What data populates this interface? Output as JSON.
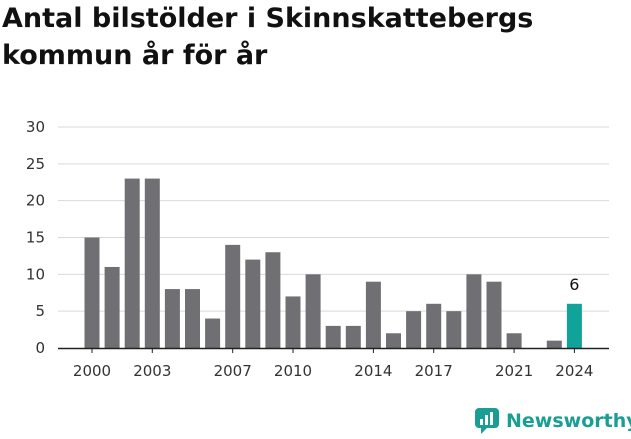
{
  "title": "Antal bilstölder i Skinnskattebergs kommun år för år",
  "brand": {
    "name": "Newsworthy",
    "color": "#1a9e94",
    "icon": "newsworthy-logo-icon"
  },
  "colors": {
    "bar": "#707074",
    "highlight": "#11a39a",
    "grid": "#d9d9d9",
    "axis": "#222222"
  },
  "chart_data": {
    "type": "bar",
    "title": "Antal bilstölder i Skinnskattebergs kommun år för år",
    "xlabel": "",
    "ylabel": "",
    "x": [
      2000,
      2001,
      2002,
      2003,
      2004,
      2005,
      2006,
      2007,
      2008,
      2009,
      2010,
      2011,
      2012,
      2013,
      2014,
      2015,
      2016,
      2017,
      2018,
      2019,
      2020,
      2021,
      2022,
      2023,
      2024
    ],
    "values": [
      15,
      11,
      23,
      23,
      8,
      8,
      4,
      14,
      12,
      13,
      7,
      10,
      3,
      3,
      9,
      2,
      5,
      6,
      5,
      10,
      9,
      2,
      0,
      1,
      6
    ],
    "x_tick_labels": [
      "2000",
      "2003",
      "2007",
      "2010",
      "2014",
      "2017",
      "2021",
      "2024"
    ],
    "y_ticks": [
      0,
      5,
      10,
      15,
      20,
      25,
      30
    ],
    "ylim": [
      0,
      30
    ],
    "grid": true,
    "highlight": {
      "x": 2024,
      "label": "6"
    }
  }
}
